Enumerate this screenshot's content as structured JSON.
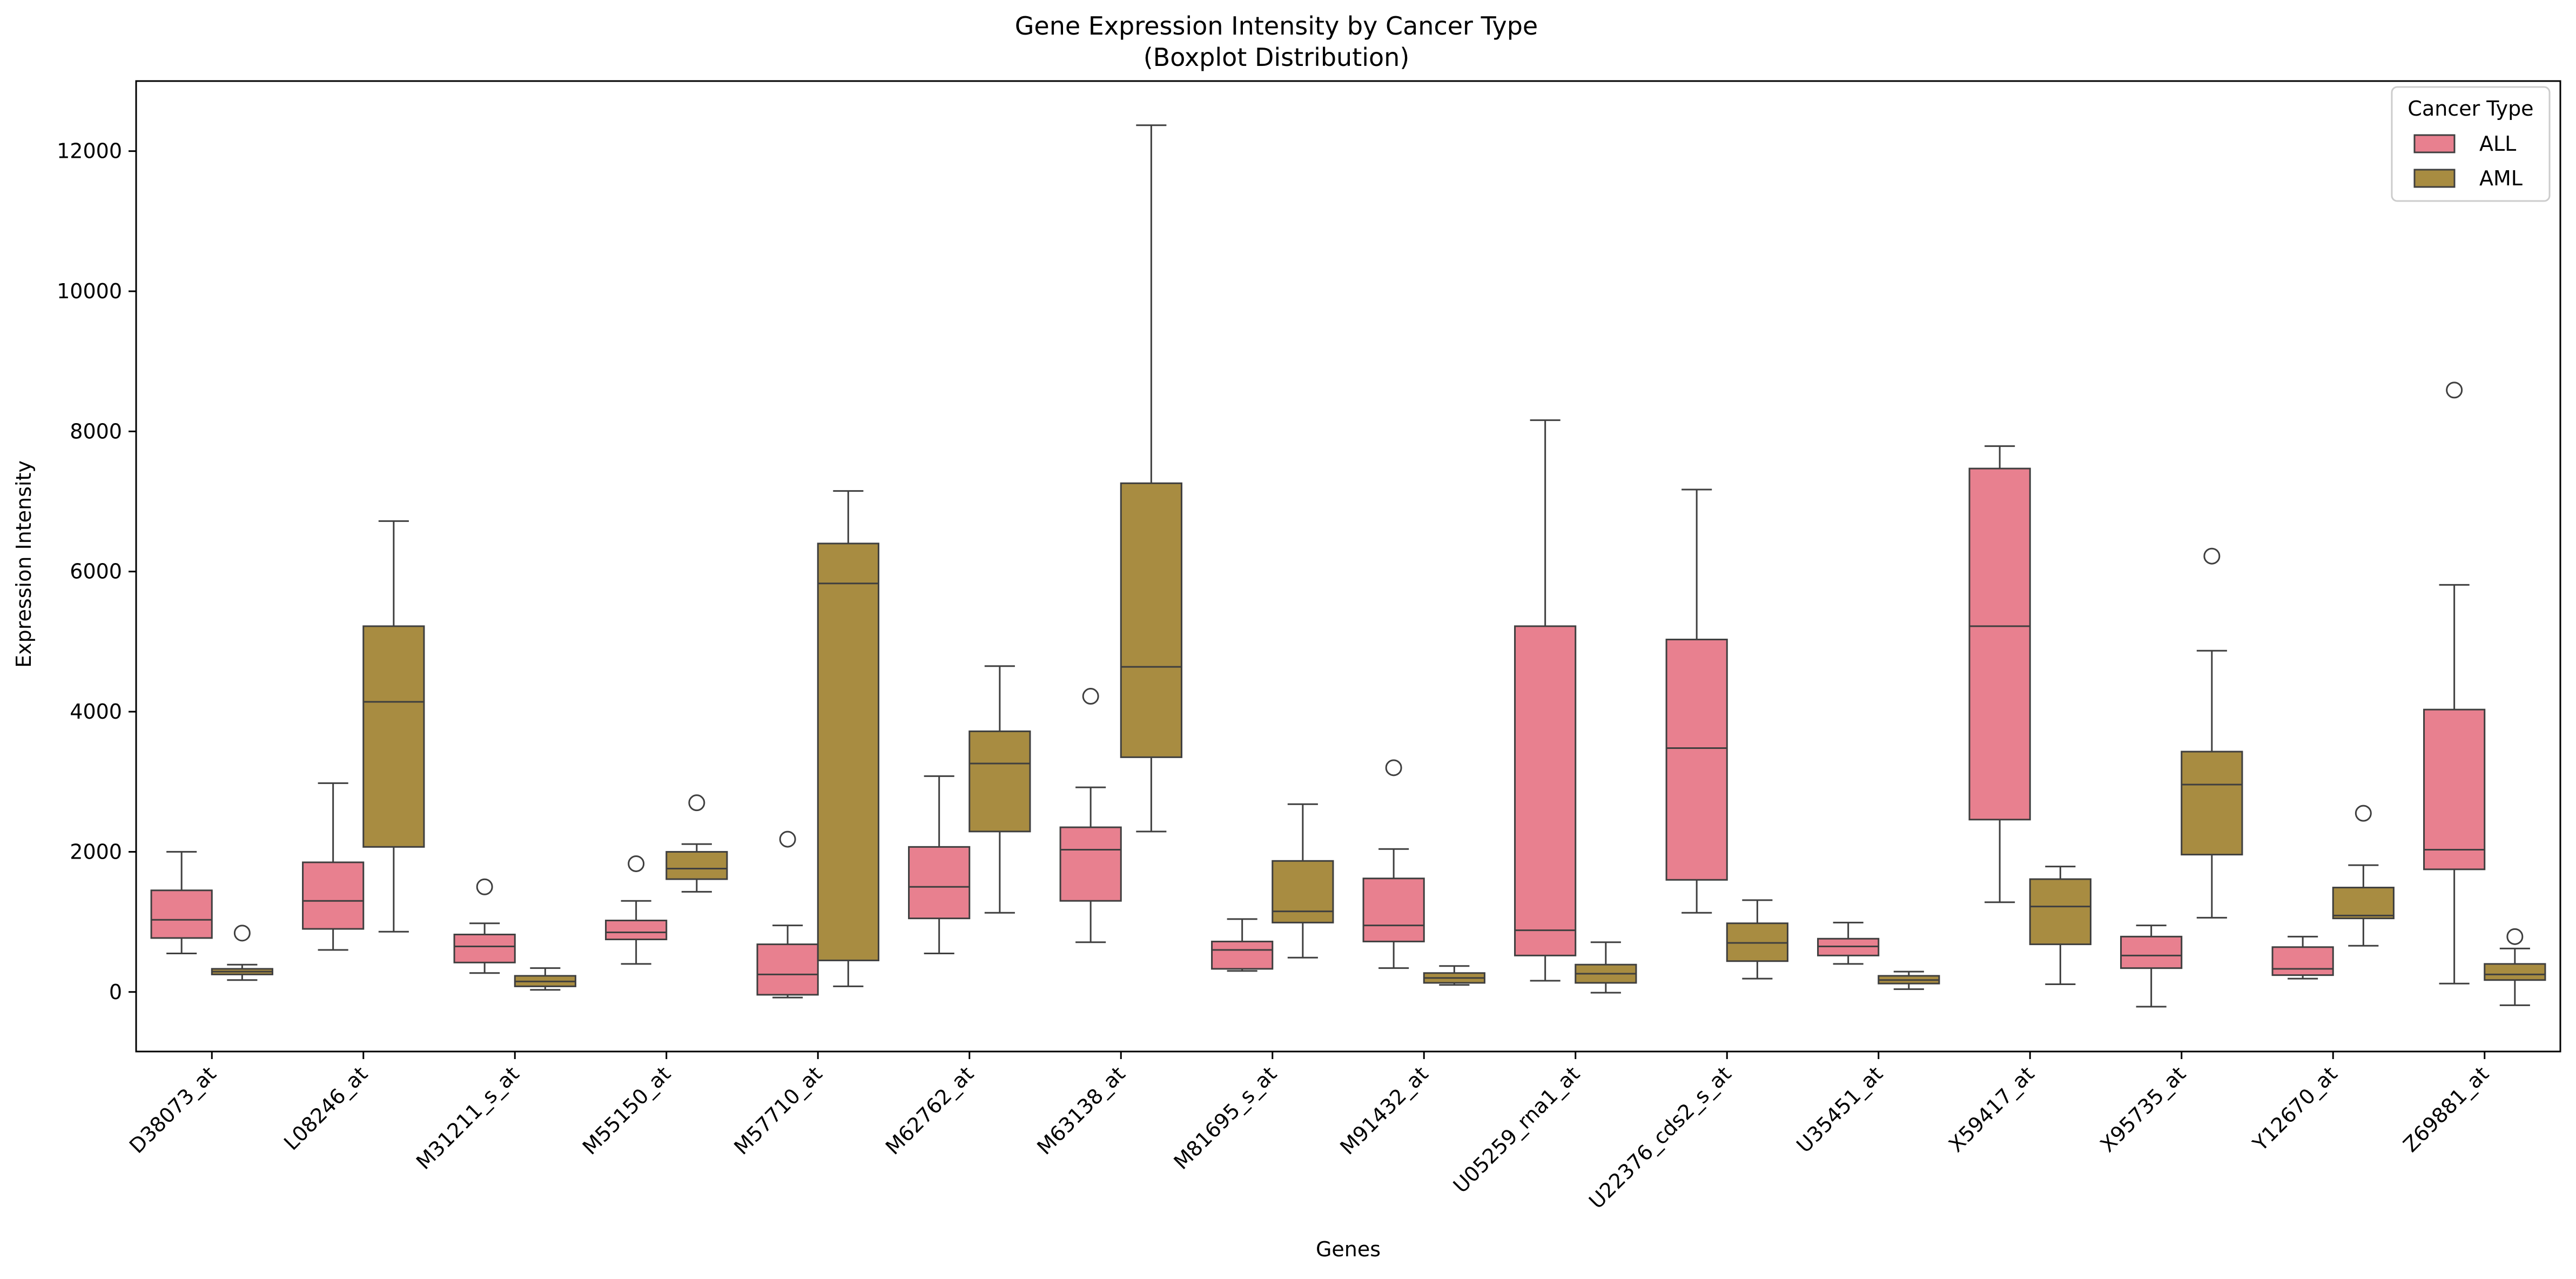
{
  "chart_data": {
    "type": "boxplot",
    "title": "Gene Expression Intensity by Cancer Type",
    "subtitle": "(Boxplot Distribution)",
    "xlabel": "Genes",
    "ylabel": "Expression Intensity",
    "ylim": [
      -850,
      13000
    ],
    "yticks": [
      0,
      2000,
      4000,
      6000,
      8000,
      10000,
      12000
    ],
    "grid": false,
    "legend": {
      "title": "Cancer Type",
      "placement": "top-right"
    },
    "categories": [
      "D38073_at",
      "L08246_at",
      "M31211_s_at",
      "M55150_at",
      "M57710_at",
      "M62762_at",
      "M63138_at",
      "M81695_s_at",
      "M91432_at",
      "U05259_rna1_at",
      "U22376_cds2_s_at",
      "U35451_at",
      "X59417_at",
      "X95735_at",
      "Y12670_at",
      "Z69881_at"
    ],
    "series": [
      {
        "name": "ALL",
        "color": "#e8808f",
        "boxes": [
          {
            "whislo": 550,
            "q1": 770,
            "med": 1030,
            "q3": 1450,
            "whishi": 2000,
            "fliers": []
          },
          {
            "whislo": 600,
            "q1": 900,
            "med": 1300,
            "q3": 1850,
            "whishi": 2980,
            "fliers": []
          },
          {
            "whislo": 270,
            "q1": 420,
            "med": 650,
            "q3": 820,
            "whishi": 980,
            "fliers": [
              1500
            ]
          },
          {
            "whislo": 400,
            "q1": 750,
            "med": 850,
            "q3": 1020,
            "whishi": 1300,
            "fliers": [
              1830
            ]
          },
          {
            "whislo": -80,
            "q1": -40,
            "med": 250,
            "q3": 680,
            "whishi": 950,
            "fliers": [
              2180
            ]
          },
          {
            "whislo": 550,
            "q1": 1050,
            "med": 1500,
            "q3": 2070,
            "whishi": 3080,
            "fliers": []
          },
          {
            "whislo": 710,
            "q1": 1300,
            "med": 2030,
            "q3": 2350,
            "whishi": 2920,
            "fliers": [
              4220
            ]
          },
          {
            "whislo": 300,
            "q1": 330,
            "med": 600,
            "q3": 720,
            "whishi": 1040,
            "fliers": []
          },
          {
            "whislo": 340,
            "q1": 720,
            "med": 950,
            "q3": 1620,
            "whishi": 2040,
            "fliers": [
              3200
            ]
          },
          {
            "whislo": 160,
            "q1": 520,
            "med": 880,
            "q3": 5220,
            "whishi": 8160,
            "fliers": []
          },
          {
            "whislo": 1130,
            "q1": 1600,
            "med": 3480,
            "q3": 5030,
            "whishi": 7170,
            "fliers": []
          },
          {
            "whislo": 400,
            "q1": 520,
            "med": 650,
            "q3": 760,
            "whishi": 990,
            "fliers": []
          },
          {
            "whislo": 1280,
            "q1": 2460,
            "med": 5220,
            "q3": 7470,
            "whishi": 7790,
            "fliers": []
          },
          {
            "whislo": -210,
            "q1": 340,
            "med": 520,
            "q3": 790,
            "whishi": 950,
            "fliers": []
          },
          {
            "whislo": 190,
            "q1": 240,
            "med": 330,
            "q3": 640,
            "whishi": 790,
            "fliers": []
          },
          {
            "whislo": 120,
            "q1": 1750,
            "med": 2030,
            "q3": 4030,
            "whishi": 5810,
            "fliers": [
              8590
            ]
          }
        ]
      },
      {
        "name": "AML",
        "color": "#a88c41",
        "boxes": [
          {
            "whislo": 170,
            "q1": 250,
            "med": 290,
            "q3": 330,
            "whishi": 390,
            "fliers": [
              840
            ]
          },
          {
            "whislo": 860,
            "q1": 2070,
            "med": 4140,
            "q3": 5220,
            "whishi": 6720,
            "fliers": []
          },
          {
            "whislo": 30,
            "q1": 80,
            "med": 150,
            "q3": 230,
            "whishi": 340,
            "fliers": []
          },
          {
            "whislo": 1430,
            "q1": 1610,
            "med": 1760,
            "q3": 2000,
            "whishi": 2110,
            "fliers": [
              2700
            ]
          },
          {
            "whislo": 80,
            "q1": 450,
            "med": 5830,
            "q3": 6400,
            "whishi": 7150,
            "fliers": []
          },
          {
            "whislo": 1130,
            "q1": 2290,
            "med": 3260,
            "q3": 3720,
            "whishi": 4650,
            "fliers": []
          },
          {
            "whislo": 2290,
            "q1": 3350,
            "med": 4640,
            "q3": 7260,
            "whishi": 12370,
            "fliers": []
          },
          {
            "whislo": 490,
            "q1": 990,
            "med": 1150,
            "q3": 1870,
            "whishi": 2680,
            "fliers": []
          },
          {
            "whislo": 100,
            "q1": 130,
            "med": 200,
            "q3": 270,
            "whishi": 370,
            "fliers": []
          },
          {
            "whislo": -10,
            "q1": 130,
            "med": 260,
            "q3": 390,
            "whishi": 710,
            "fliers": []
          },
          {
            "whislo": 190,
            "q1": 440,
            "med": 700,
            "q3": 980,
            "whishi": 1310,
            "fliers": []
          },
          {
            "whislo": 40,
            "q1": 120,
            "med": 170,
            "q3": 230,
            "whishi": 290,
            "fliers": []
          },
          {
            "whislo": 110,
            "q1": 680,
            "med": 1220,
            "q3": 1610,
            "whishi": 1790,
            "fliers": []
          },
          {
            "whislo": 1060,
            "q1": 1960,
            "med": 2960,
            "q3": 3430,
            "whishi": 4870,
            "fliers": [
              6220
            ]
          },
          {
            "whislo": 660,
            "q1": 1050,
            "med": 1090,
            "q3": 1490,
            "whishi": 1810,
            "fliers": [
              2550
            ]
          },
          {
            "whislo": -190,
            "q1": 170,
            "med": 250,
            "q3": 400,
            "whishi": 620,
            "fliers": [
              790
            ]
          }
        ]
      }
    ]
  }
}
